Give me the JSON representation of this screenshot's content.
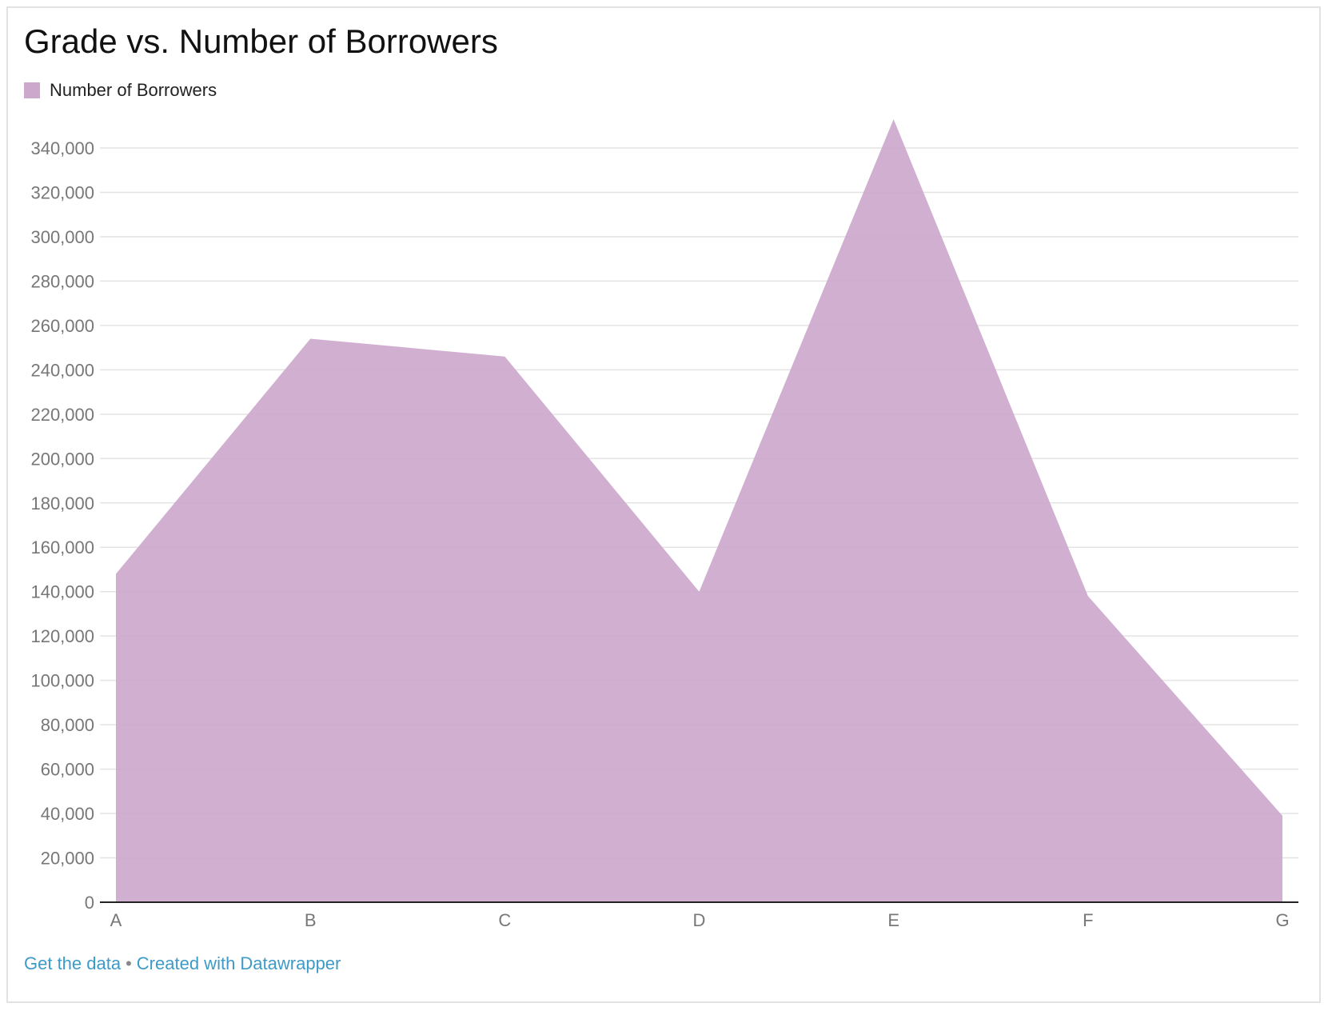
{
  "chart_data": {
    "type": "area",
    "title": "Grade vs. Number of Borrowers",
    "categories": [
      "A",
      "B",
      "C",
      "D",
      "E",
      "F",
      "G"
    ],
    "series": [
      {
        "name": "Number of Borrowers",
        "values": [
          148000,
          254000,
          246000,
          140000,
          353000,
          138000,
          39000
        ]
      }
    ],
    "yticks": [
      "0",
      "20,000",
      "40,000",
      "60,000",
      "80,000",
      "100,000",
      "120,000",
      "140,000",
      "160,000",
      "180,000",
      "200,000",
      "220,000",
      "240,000",
      "260,000",
      "280,000",
      "300,000",
      "320,000",
      "340,000"
    ],
    "ylim": [
      0,
      340000
    ],
    "ystep": 20000,
    "grid": true,
    "legend_position": "top-left",
    "colors": {
      "area": "#cca8cc",
      "grid": "#e4e4e4",
      "axis": "#222222",
      "tick_text": "#777777",
      "link": "#3e9ac6"
    }
  },
  "footer": {
    "get_data_label": "Get the data",
    "separator": "•",
    "created_with_label": "Created with Datawrapper"
  }
}
